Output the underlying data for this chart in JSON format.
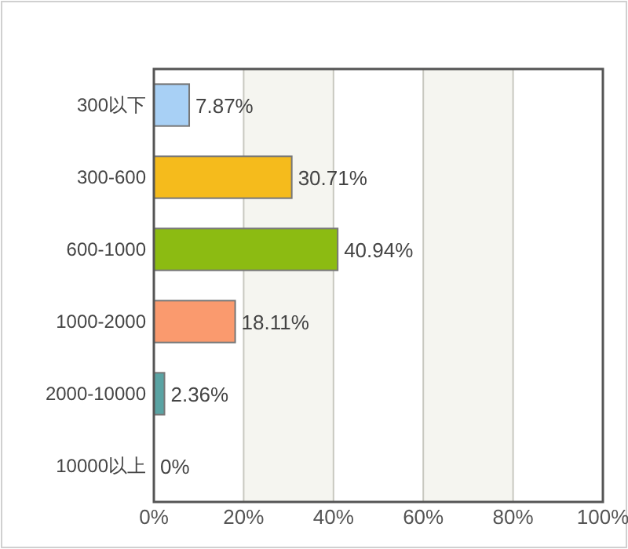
{
  "chart_data": {
    "type": "bar",
    "orientation": "horizontal",
    "categories": [
      "300以下",
      "300-600",
      "600-1000",
      "1000-2000",
      "2000-10000",
      "10000以上"
    ],
    "values": [
      7.87,
      30.71,
      40.94,
      18.11,
      2.36,
      0
    ],
    "colors": [
      "#a8d0f5",
      "#f5bb1c",
      "#8cbb12",
      "#fa9a6e",
      "#5aa3a3",
      "#cccccc"
    ],
    "value_labels": [
      "7.87%",
      "30.71%",
      "40.94%",
      "18.11%",
      "2.36%",
      "0%"
    ],
    "xlim": [
      0,
      100
    ],
    "xticks": [
      {
        "value": 0,
        "label": "0%"
      },
      {
        "value": 20,
        "label": "20%"
      },
      {
        "value": 40,
        "label": "40%"
      },
      {
        "value": 60,
        "label": "60%"
      },
      {
        "value": 80,
        "label": "80%"
      },
      {
        "value": 100,
        "label": "100%"
      }
    ],
    "grid": "x"
  }
}
